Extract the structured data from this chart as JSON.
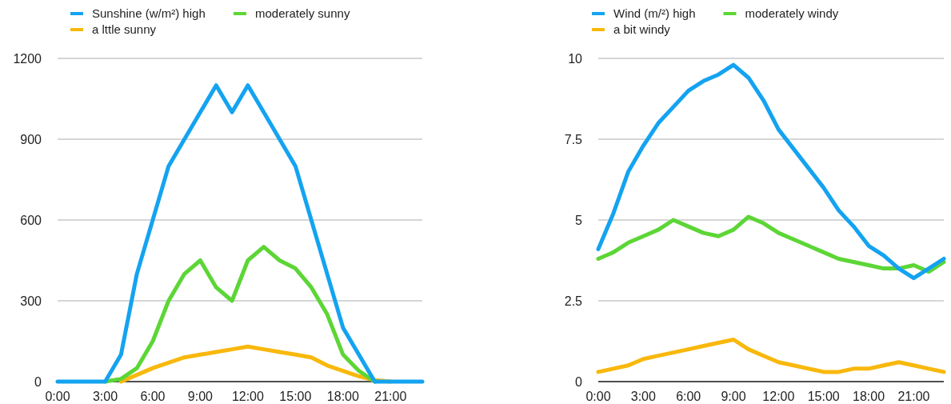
{
  "chart_data": [
    {
      "type": "line",
      "x": [
        0,
        1,
        2,
        3,
        4,
        5,
        6,
        7,
        8,
        9,
        10,
        11,
        12,
        13,
        14,
        15,
        16,
        17,
        18,
        19,
        20,
        21,
        22,
        23
      ],
      "xlim": [
        0,
        23
      ],
      "xticks": [
        {
          "value": 0,
          "label": "0:00"
        },
        {
          "value": 3,
          "label": "3:00"
        },
        {
          "value": 6,
          "label": "6:00"
        },
        {
          "value": 9,
          "label": "9:00"
        },
        {
          "value": 12,
          "label": "12:00"
        },
        {
          "value": 15,
          "label": "15:00"
        },
        {
          "value": 18,
          "label": "18:00"
        },
        {
          "value": 21,
          "label": "21:00"
        }
      ],
      "ylim": [
        0,
        1200
      ],
      "yticks": [
        0,
        300,
        600,
        900,
        1200
      ],
      "grid": "y",
      "legend": "top",
      "series": [
        {
          "name": "Sunshine (w/m²) high",
          "color": "#14a3f0",
          "values": [
            0,
            0,
            0,
            0,
            100,
            400,
            600,
            800,
            900,
            1000,
            1100,
            1000,
            1100,
            1000,
            900,
            800,
            600,
            400,
            200,
            100,
            0,
            0,
            0,
            0
          ]
        },
        {
          "name": "moderately sunny",
          "color": "#5cd636",
          "values": [
            null,
            null,
            null,
            0,
            10,
            50,
            150,
            300,
            400,
            450,
            350,
            300,
            450,
            500,
            450,
            420,
            350,
            250,
            100,
            40,
            0,
            null,
            null,
            null
          ]
        },
        {
          "name": "a lttle sunny",
          "color": "#f8b80c",
          "values": [
            null,
            null,
            null,
            null,
            0,
            25,
            50,
            70,
            90,
            100,
            110,
            120,
            130,
            120,
            110,
            100,
            90,
            60,
            40,
            20,
            5,
            0,
            null,
            null
          ]
        }
      ]
    },
    {
      "type": "line",
      "x": [
        0,
        1,
        2,
        3,
        4,
        5,
        6,
        7,
        8,
        9,
        10,
        11,
        12,
        13,
        14,
        15,
        16,
        17,
        18,
        19,
        20,
        21,
        22,
        23
      ],
      "xlim": [
        0,
        23
      ],
      "xticks": [
        {
          "value": 0,
          "label": "0:00"
        },
        {
          "value": 3,
          "label": "3:00"
        },
        {
          "value": 6,
          "label": "6:00"
        },
        {
          "value": 9,
          "label": "9:00"
        },
        {
          "value": 12,
          "label": "12:00"
        },
        {
          "value": 15,
          "label": "15:00"
        },
        {
          "value": 18,
          "label": "18:00"
        },
        {
          "value": 21,
          "label": "21:00"
        }
      ],
      "ylim": [
        0,
        10
      ],
      "yticks": [
        0,
        2.5,
        5,
        7.5,
        10
      ],
      "grid": "y",
      "legend": "top",
      "series": [
        {
          "name": "Wind (m/²) high",
          "color": "#14a3f0",
          "values": [
            4.1,
            5.2,
            6.5,
            7.3,
            8.0,
            8.5,
            9.0,
            9.3,
            9.5,
            9.8,
            9.4,
            8.7,
            7.8,
            7.2,
            6.6,
            6.0,
            5.3,
            4.8,
            4.2,
            3.9,
            3.5,
            3.2,
            3.5,
            3.8
          ]
        },
        {
          "name": "moderately windy",
          "color": "#5cd636",
          "values": [
            3.8,
            4.0,
            4.3,
            4.5,
            4.7,
            5.0,
            4.8,
            4.6,
            4.5,
            4.7,
            5.1,
            4.9,
            4.6,
            4.4,
            4.2,
            4.0,
            3.8,
            3.7,
            3.6,
            3.5,
            3.5,
            3.6,
            3.4,
            3.7
          ]
        },
        {
          "name": "a bit windy",
          "color": "#f8b80c",
          "values": [
            0.3,
            0.4,
            0.5,
            0.7,
            0.8,
            0.9,
            1.0,
            1.1,
            1.2,
            1.3,
            1.0,
            0.8,
            0.6,
            0.5,
            0.4,
            0.3,
            0.3,
            0.4,
            0.4,
            0.5,
            0.6,
            0.5,
            0.4,
            0.3
          ]
        }
      ]
    }
  ]
}
